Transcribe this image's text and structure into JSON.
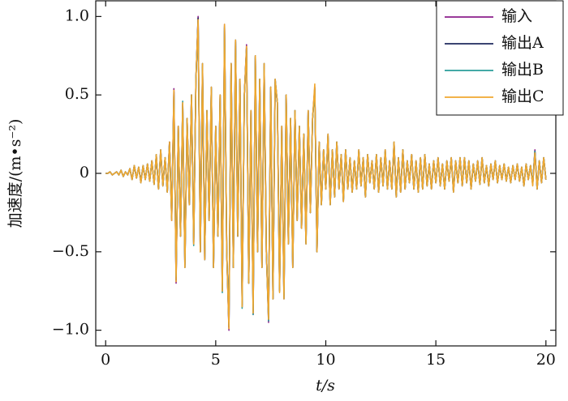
{
  "chart_data": {
    "type": "line",
    "x_label": "t/s",
    "y_label": "加速度/(m•s⁻²)",
    "xlim": [
      -0.45,
      20.45
    ],
    "ylim": [
      -1.1,
      1.1
    ],
    "xticks": [
      0,
      5,
      10,
      15,
      20
    ],
    "yticks": [
      {
        "value": 1,
        "label": "1.0"
      },
      {
        "value": 0.5,
        "label": "0.5"
      },
      0,
      {
        "value": -0.5,
        "label": "−0.5"
      },
      {
        "value": -1,
        "label": "−1.0"
      }
    ],
    "legend": "upper right",
    "x": [
      0,
      0.1,
      0.2,
      0.3,
      0.4,
      0.5,
      0.6,
      0.7,
      0.8,
      0.9,
      1,
      1.1,
      1.2,
      1.3,
      1.4,
      1.5,
      1.6,
      1.7,
      1.8,
      1.9,
      2,
      2.1,
      2.2,
      2.3,
      2.4,
      2.5,
      2.6,
      2.7,
      2.8,
      2.9,
      3,
      3.1,
      3.2,
      3.3,
      3.4,
      3.5,
      3.6,
      3.7,
      3.8,
      3.9,
      4,
      4.1,
      4.2,
      4.3,
      4.4,
      4.5,
      4.6,
      4.7,
      4.8,
      4.9,
      5,
      5.1,
      5.2,
      5.3,
      5.4,
      5.5,
      5.6,
      5.7,
      5.8,
      5.9,
      6,
      6.1,
      6.2,
      6.3,
      6.4,
      6.5,
      6.6,
      6.7,
      6.8,
      6.9,
      7,
      7.1,
      7.2,
      7.3,
      7.4,
      7.5,
      7.6,
      7.7,
      7.8,
      7.9,
      8,
      8.1,
      8.2,
      8.3,
      8.4,
      8.5,
      8.6,
      8.7,
      8.8,
      8.9,
      9,
      9.1,
      9.2,
      9.3,
      9.4,
      9.5,
      9.6,
      9.7,
      9.8,
      9.9,
      10,
      10.1,
      10.2,
      10.3,
      10.4,
      10.5,
      10.6,
      10.7,
      10.8,
      10.9,
      11,
      11.1,
      11.2,
      11.3,
      11.4,
      11.5,
      11.6,
      11.7,
      11.8,
      11.9,
      12,
      12.1,
      12.2,
      12.3,
      12.4,
      12.5,
      12.6,
      12.7,
      12.8,
      12.9,
      13,
      13.1,
      13.2,
      13.3,
      13.4,
      13.5,
      13.6,
      13.7,
      13.8,
      13.9,
      14,
      14.1,
      14.2,
      14.3,
      14.4,
      14.5,
      14.6,
      14.7,
      14.8,
      14.9,
      15,
      15.1,
      15.2,
      15.3,
      15.4,
      15.5,
      15.6,
      15.7,
      15.8,
      15.9,
      16,
      16.1,
      16.2,
      16.3,
      16.4,
      16.5,
      16.6,
      16.7,
      16.8,
      16.9,
      17,
      17.1,
      17.2,
      17.3,
      17.4,
      17.5,
      17.6,
      17.7,
      17.8,
      17.9,
      18,
      18.1,
      18.2,
      18.3,
      18.4,
      18.5,
      18.6,
      18.7,
      18.8,
      18.9,
      19,
      19.1,
      19.2,
      19.3,
      19.4,
      19.5,
      19.6,
      19.7,
      19.8,
      19.9,
      20
    ],
    "series": [
      {
        "name": "输入",
        "color": "#8b1e8b",
        "values": [
          0,
          0,
          0.01,
          -0.01,
          0,
          0.01,
          -0.01,
          0.02,
          -0.02,
          0.01,
          -0.01,
          0.03,
          -0.04,
          0.05,
          -0.03,
          0.04,
          -0.06,
          0.05,
          -0.04,
          0.06,
          -0.05,
          0.08,
          -0.07,
          0.12,
          -0.1,
          0.15,
          -0.08,
          0.1,
          -0.12,
          0.2,
          -0.3,
          0.54,
          -0.7,
          0.3,
          -0.4,
          0.45,
          -0.6,
          0.35,
          -0.2,
          0.5,
          -0.45,
          0.6,
          1.0,
          -0.5,
          0.7,
          -0.55,
          0.4,
          -0.3,
          0.55,
          -0.6,
          0.3,
          -0.4,
          0.5,
          -0.75,
          0.95,
          -0.5,
          -1.0,
          0.7,
          -0.6,
          0.85,
          -0.4,
          0.6,
          -0.85,
          0.5,
          0.82,
          -0.7,
          0.4,
          -0.9,
          0.75,
          -0.5,
          0.6,
          -0.6,
          0.7,
          -0.5,
          -0.95,
          0.55,
          -0.8,
          0.6,
          0.45,
          -0.75,
          0.3,
          -0.8,
          0.5,
          -0.45,
          0.35,
          -0.6,
          0.4,
          -0.3,
          0.3,
          -0.35,
          0.25,
          -0.45,
          0.4,
          -0.25,
          0.35,
          0.55,
          -0.5,
          0.2,
          -0.2,
          0.15,
          -0.1,
          0.25,
          -0.2,
          0.15,
          -0.15,
          0.2,
          -0.1,
          0.12,
          -0.18,
          0.15,
          -0.1,
          0.1,
          -0.12,
          0.08,
          -0.1,
          0.15,
          -0.08,
          0.1,
          -0.15,
          0.12,
          -0.06,
          0.08,
          -0.1,
          0.12,
          -0.12,
          0.1,
          -0.08,
          0.15,
          -0.1,
          0.08,
          -0.1,
          0.2,
          -0.15,
          0.1,
          -0.12,
          0.15,
          -0.1,
          0.08,
          -0.06,
          0.12,
          -0.1,
          0.08,
          -0.12,
          0.1,
          -0.1,
          0.12,
          -0.08,
          0.06,
          -0.1,
          0.08,
          -0.06,
          0.1,
          -0.08,
          0.06,
          -0.1,
          0.08,
          -0.05,
          0.1,
          -0.12,
          0.08,
          -0.06,
          0.1,
          -0.08,
          0.1,
          -0.06,
          0.08,
          -0.1,
          0.06,
          -0.05,
          0.08,
          -0.07,
          0.1,
          -0.06,
          0.05,
          -0.08,
          0.06,
          -0.04,
          0.08,
          -0.06,
          0.05,
          -0.04,
          0.06,
          -0.05,
          0.04,
          -0.06,
          0.05,
          -0.04,
          0.06,
          -0.05,
          0.04,
          -0.08,
          0.06,
          -0.04,
          0.05,
          -0.07,
          0.15,
          -0.1,
          0.08,
          -0.06,
          0.1,
          -0.04
        ]
      },
      {
        "name": "输出A",
        "color": "#1f2a5e",
        "values": [
          0,
          0,
          0.01,
          -0.01,
          0,
          0.01,
          -0.01,
          0.02,
          -0.02,
          0.01,
          -0.01,
          0.03,
          -0.04,
          0.05,
          -0.03,
          0.04,
          -0.05,
          0.05,
          -0.04,
          0.06,
          -0.05,
          0.08,
          -0.07,
          0.11,
          -0.1,
          0.14,
          -0.08,
          0.1,
          -0.12,
          0.2,
          -0.28,
          0.52,
          -0.68,
          0.3,
          -0.4,
          0.44,
          -0.58,
          0.35,
          -0.2,
          0.5,
          -0.44,
          0.6,
          0.99,
          -0.5,
          0.68,
          -0.55,
          0.4,
          -0.3,
          0.54,
          -0.6,
          0.3,
          -0.4,
          0.5,
          -0.74,
          0.93,
          -0.5,
          -0.98,
          0.7,
          -0.6,
          0.84,
          -0.4,
          0.6,
          -0.84,
          0.5,
          0.8,
          -0.7,
          0.4,
          -0.88,
          0.74,
          -0.5,
          0.6,
          -0.6,
          0.68,
          -0.5,
          -0.92,
          0.55,
          -0.8,
          0.58,
          0.45,
          -0.74,
          0.3,
          -0.78,
          0.5,
          -0.44,
          0.35,
          -0.6,
          0.4,
          -0.3,
          0.3,
          -0.35,
          0.25,
          -0.44,
          0.4,
          -0.25,
          0.35,
          0.54,
          -0.5,
          0.2,
          -0.2,
          0.15,
          -0.1,
          0.24,
          -0.2,
          0.15,
          -0.15,
          0.2,
          -0.1,
          0.12,
          -0.17,
          0.15,
          -0.1,
          0.1,
          -0.12,
          0.08,
          -0.1,
          0.14,
          -0.08,
          0.1,
          -0.15,
          0.12,
          -0.06,
          0.08,
          -0.1,
          0.12,
          -0.12,
          0.1,
          -0.08,
          0.14,
          -0.1,
          0.08,
          -0.1,
          0.19,
          -0.15,
          0.1,
          -0.12,
          0.15,
          -0.1,
          0.08,
          -0.06,
          0.12,
          -0.1,
          0.08,
          -0.12,
          0.1,
          -0.1,
          0.12,
          -0.08,
          0.06,
          -0.1,
          0.08,
          -0.06,
          0.1,
          -0.08,
          0.06,
          -0.1,
          0.08,
          -0.05,
          0.1,
          -0.11,
          0.08,
          -0.06,
          0.1,
          -0.08,
          0.1,
          -0.06,
          0.08,
          -0.1,
          0.06,
          -0.05,
          0.08,
          -0.07,
          0.1,
          -0.06,
          0.05,
          -0.08,
          0.06,
          -0.04,
          0.08,
          -0.06,
          0.05,
          -0.04,
          0.06,
          -0.05,
          0.04,
          -0.06,
          0.05,
          -0.04,
          0.06,
          -0.05,
          0.04,
          -0.08,
          0.06,
          -0.04,
          0.05,
          -0.07,
          0.14,
          -0.1,
          0.08,
          -0.06,
          0.1,
          -0.04
        ]
      },
      {
        "name": "输出B",
        "color": "#2a9d9a",
        "values": [
          0,
          0,
          0.01,
          -0.01,
          0,
          0.01,
          -0.01,
          0.02,
          -0.02,
          0.01,
          -0.01,
          0.03,
          -0.04,
          0.05,
          -0.03,
          0.04,
          -0.06,
          0.05,
          -0.04,
          0.06,
          -0.05,
          0.08,
          -0.07,
          0.12,
          -0.1,
          0.15,
          -0.08,
          0.1,
          -0.12,
          0.19,
          -0.29,
          0.5,
          -0.66,
          0.3,
          -0.4,
          0.46,
          -0.6,
          0.35,
          -0.2,
          0.5,
          -0.46,
          0.6,
          0.97,
          -0.5,
          0.7,
          -0.55,
          0.4,
          -0.3,
          0.55,
          -0.6,
          0.3,
          -0.4,
          0.5,
          -0.76,
          0.94,
          -0.5,
          -0.97,
          0.7,
          -0.6,
          0.85,
          -0.4,
          0.6,
          -0.86,
          0.5,
          0.8,
          -0.7,
          0.4,
          -0.9,
          0.75,
          -0.5,
          0.6,
          -0.6,
          0.7,
          -0.5,
          -0.94,
          0.55,
          -0.8,
          0.6,
          0.45,
          -0.75,
          0.3,
          -0.8,
          0.5,
          -0.45,
          0.35,
          -0.6,
          0.4,
          -0.3,
          0.3,
          -0.35,
          0.25,
          -0.45,
          0.4,
          -0.25,
          0.35,
          0.53,
          -0.5,
          0.2,
          -0.2,
          0.15,
          -0.1,
          0.25,
          -0.2,
          0.15,
          -0.15,
          0.2,
          -0.1,
          0.12,
          -0.18,
          0.15,
          -0.1,
          0.1,
          -0.12,
          0.08,
          -0.1,
          0.15,
          -0.08,
          0.1,
          -0.15,
          0.12,
          -0.06,
          0.08,
          -0.1,
          0.12,
          -0.12,
          0.1,
          -0.08,
          0.15,
          -0.1,
          0.08,
          -0.1,
          0.2,
          -0.15,
          0.1,
          -0.12,
          0.15,
          -0.1,
          0.08,
          -0.06,
          0.12,
          -0.1,
          0.08,
          -0.12,
          0.1,
          -0.1,
          0.12,
          -0.08,
          0.06,
          -0.1,
          0.08,
          -0.06,
          0.1,
          -0.08,
          0.06,
          -0.1,
          0.08,
          -0.05,
          0.1,
          -0.12,
          0.08,
          -0.06,
          0.1,
          -0.08,
          0.1,
          -0.06,
          0.08,
          -0.1,
          0.06,
          -0.05,
          0.08,
          -0.07,
          0.1,
          -0.06,
          0.05,
          -0.08,
          0.06,
          -0.04,
          0.08,
          -0.06,
          0.05,
          -0.04,
          0.06,
          -0.05,
          0.04,
          -0.06,
          0.05,
          -0.04,
          0.06,
          -0.05,
          0.04,
          -0.08,
          0.06,
          -0.04,
          0.05,
          -0.07,
          0.14,
          -0.1,
          0.08,
          -0.06,
          0.1,
          -0.04
        ]
      },
      {
        "name": "输出C",
        "color": "#f0a830",
        "values": [
          0,
          0,
          0.01,
          -0.01,
          0,
          0.01,
          -0.01,
          0.02,
          -0.02,
          0.01,
          -0.01,
          0.03,
          -0.04,
          0.05,
          -0.03,
          0.04,
          -0.06,
          0.05,
          -0.04,
          0.06,
          -0.05,
          0.08,
          -0.07,
          0.12,
          -0.1,
          0.15,
          -0.08,
          0.1,
          -0.12,
          0.2,
          -0.3,
          0.53,
          -0.69,
          0.3,
          -0.4,
          0.45,
          -0.6,
          0.35,
          -0.2,
          0.5,
          -0.45,
          0.6,
          0.98,
          -0.5,
          0.7,
          -0.55,
          0.4,
          -0.3,
          0.55,
          -0.6,
          0.3,
          -0.4,
          0.5,
          -0.75,
          0.95,
          -0.5,
          -0.99,
          0.7,
          -0.6,
          0.85,
          -0.4,
          0.6,
          -0.85,
          0.5,
          0.81,
          -0.7,
          0.4,
          -0.89,
          0.75,
          -0.5,
          0.6,
          -0.6,
          0.7,
          -0.5,
          -0.93,
          0.55,
          -0.8,
          0.6,
          0.45,
          -0.76,
          0.3,
          -0.8,
          0.5,
          -0.45,
          0.35,
          -0.6,
          0.4,
          -0.3,
          0.3,
          -0.35,
          0.25,
          -0.45,
          0.4,
          -0.25,
          0.35,
          0.57,
          -0.5,
          0.2,
          -0.2,
          0.15,
          -0.1,
          0.25,
          -0.2,
          0.15,
          -0.15,
          0.2,
          -0.1,
          0.12,
          -0.18,
          0.15,
          -0.1,
          0.1,
          -0.12,
          0.08,
          -0.1,
          0.15,
          -0.08,
          0.1,
          -0.15,
          0.12,
          -0.06,
          0.08,
          -0.1,
          0.12,
          -0.12,
          0.1,
          -0.08,
          0.15,
          -0.1,
          0.08,
          -0.1,
          0.2,
          -0.15,
          0.1,
          -0.12,
          0.15,
          -0.1,
          0.08,
          -0.06,
          0.12,
          -0.1,
          0.08,
          -0.12,
          0.1,
          -0.1,
          0.12,
          -0.08,
          0.06,
          -0.1,
          0.08,
          -0.06,
          0.1,
          -0.08,
          0.06,
          -0.1,
          0.08,
          -0.05,
          0.1,
          -0.12,
          0.08,
          -0.06,
          0.1,
          -0.08,
          0.1,
          -0.06,
          0.08,
          -0.1,
          0.06,
          -0.05,
          0.08,
          -0.07,
          0.1,
          -0.06,
          0.05,
          -0.08,
          0.06,
          -0.04,
          0.08,
          -0.06,
          0.05,
          -0.04,
          0.06,
          -0.05,
          0.04,
          -0.06,
          0.05,
          -0.04,
          0.06,
          -0.05,
          0.04,
          -0.08,
          0.06,
          -0.04,
          0.05,
          -0.08,
          0.13,
          -0.1,
          0.08,
          -0.06,
          0.1,
          -0.04
        ]
      }
    ]
  }
}
